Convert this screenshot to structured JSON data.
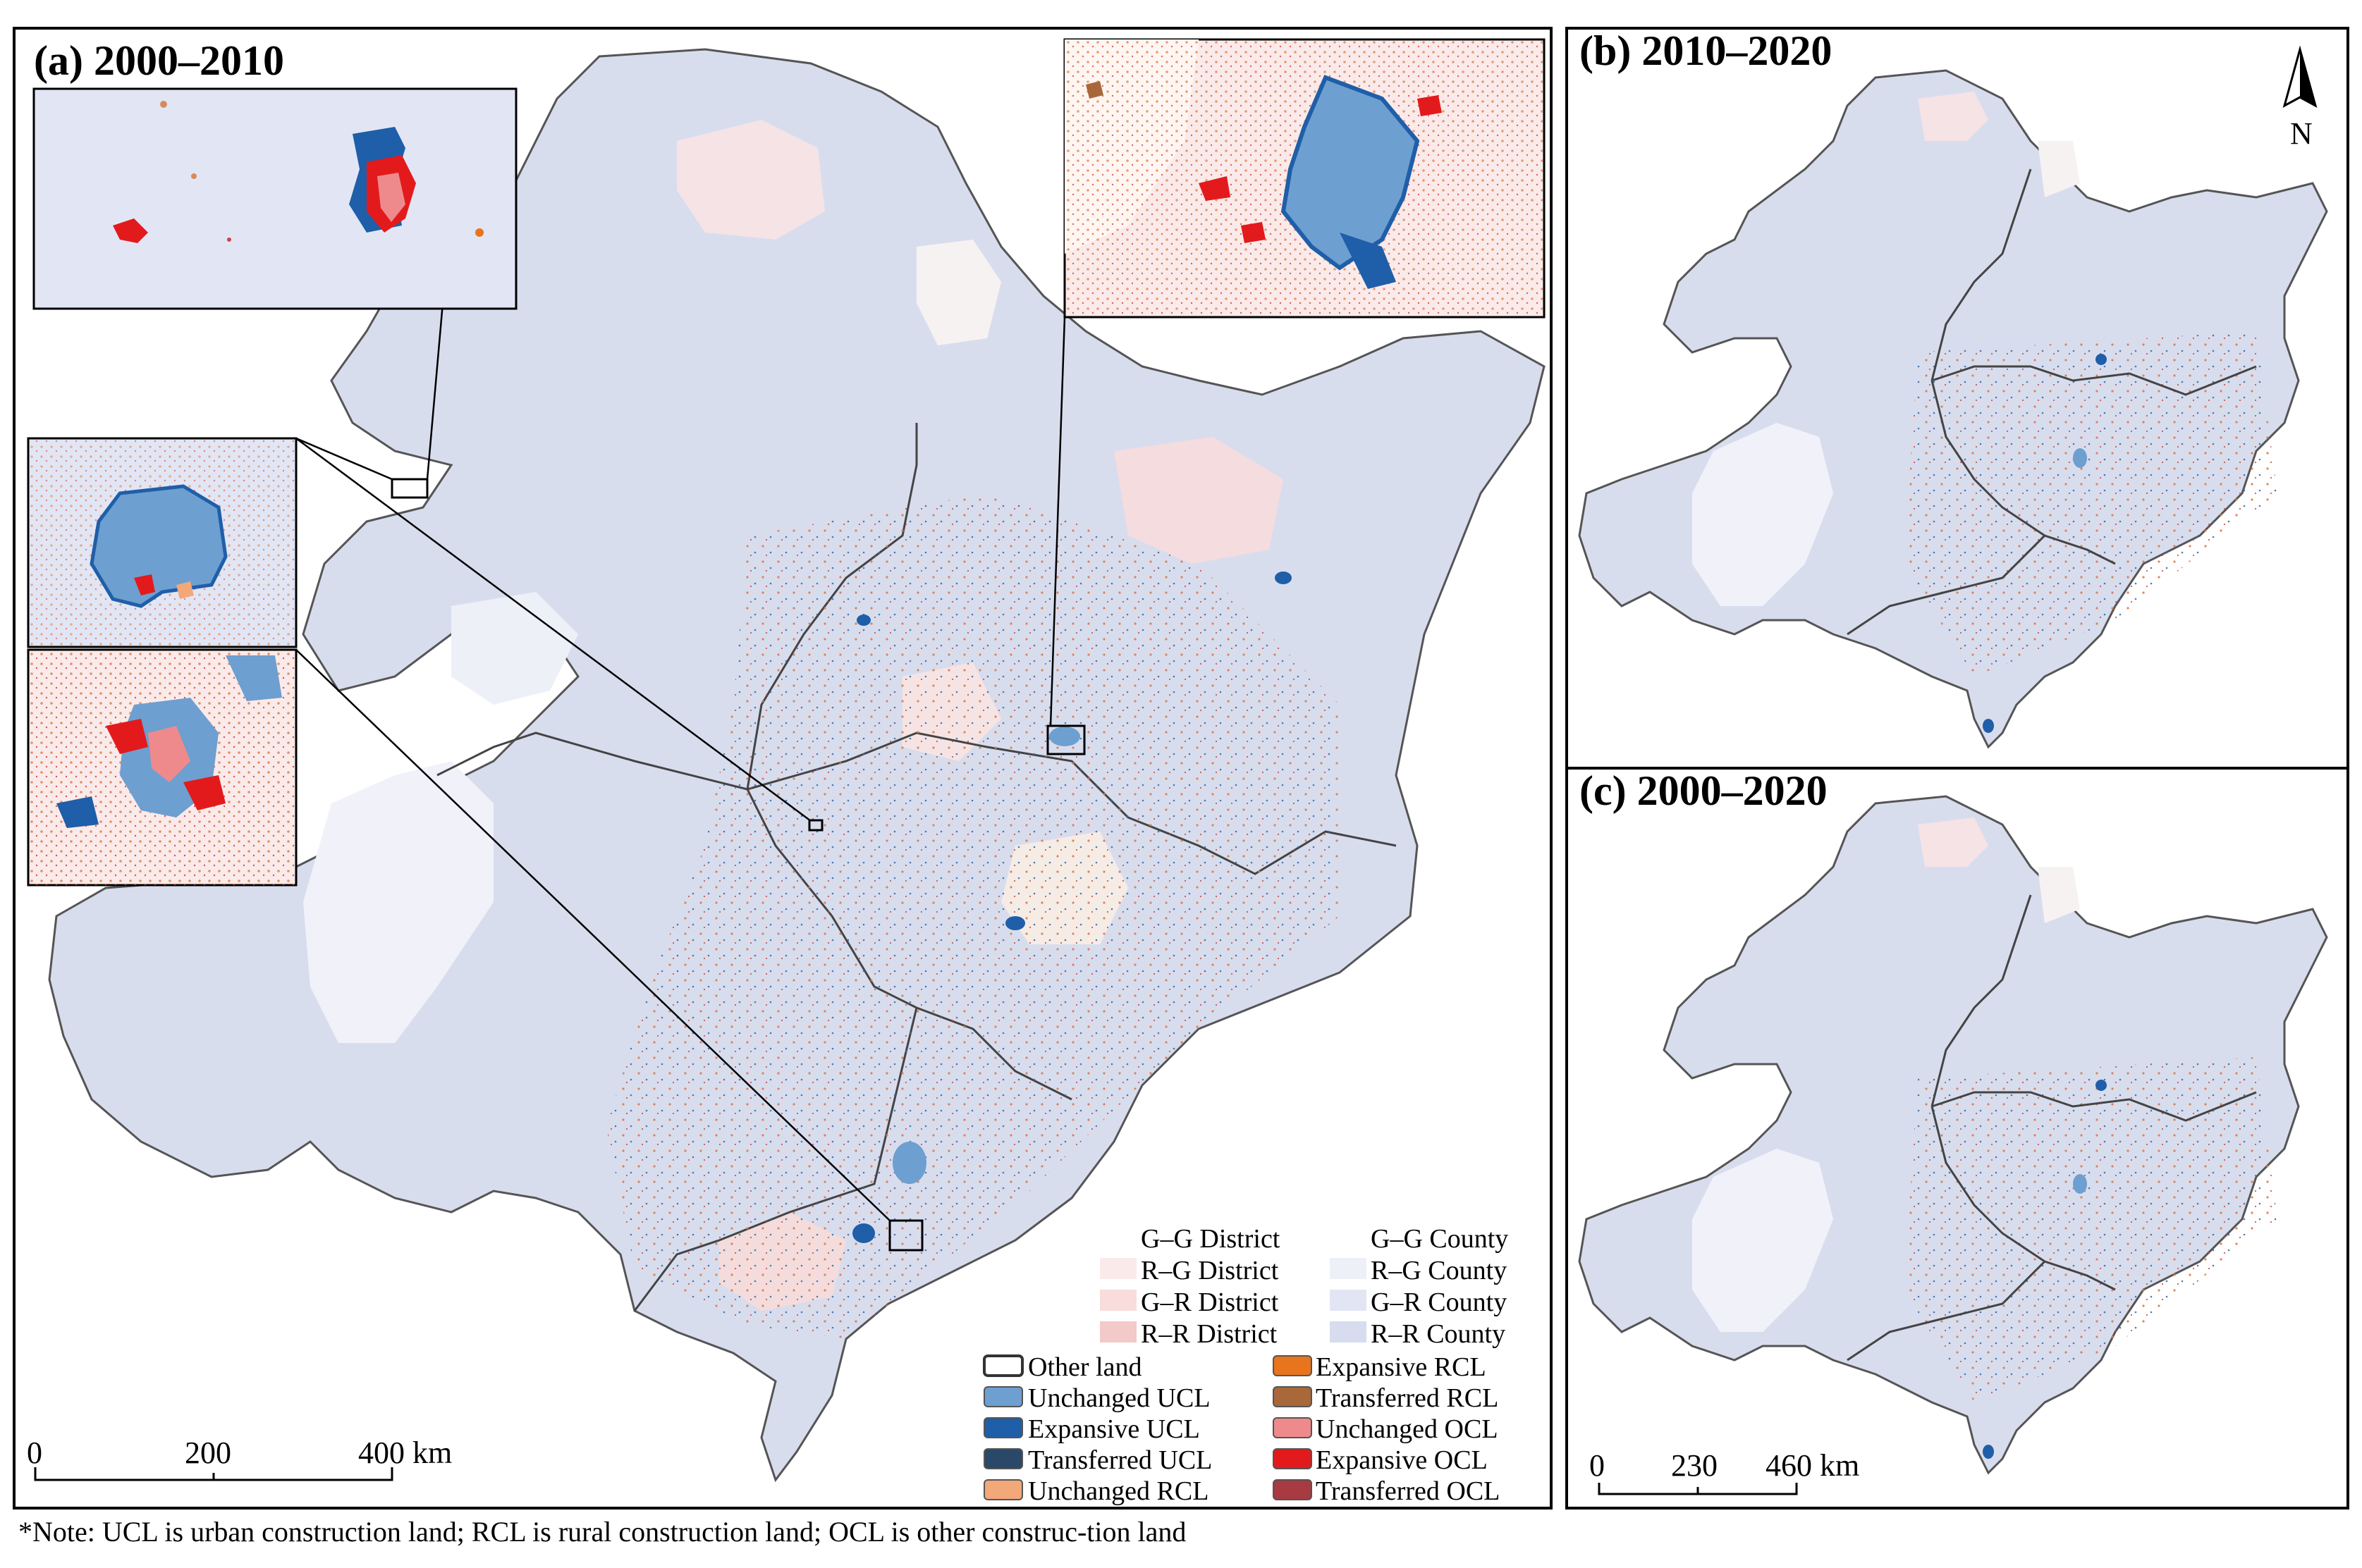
{
  "panels": {
    "a": {
      "title": "(a) 2000–2010"
    },
    "b": {
      "title": "(b) 2010–2020"
    },
    "c": {
      "title": "(c) 2000–2020"
    }
  },
  "north_arrow": {
    "label": "N"
  },
  "scalebar_a": {
    "ticks": [
      "0",
      "200",
      "400 km"
    ]
  },
  "scalebar_bc": {
    "ticks": [
      "0",
      "230",
      "460 km"
    ]
  },
  "legend_regions": [
    {
      "label": "G–G District",
      "color": "#ffffff"
    },
    {
      "label": "G–G County",
      "color": "#ffffff"
    },
    {
      "label": "R–G District",
      "color": "#fbeaea"
    },
    {
      "label": "R–G County",
      "color": "#eef0f8"
    },
    {
      "label": "G–R District",
      "color": "#f9dcdc"
    },
    {
      "label": "G–R County",
      "color": "#e2e6f4"
    },
    {
      "label": "R–R District",
      "color": "#f4c9c9"
    },
    {
      "label": "R–R County",
      "color": "#d7dcee"
    }
  ],
  "legend_landuse": [
    {
      "label": "Other land",
      "color": "#ffffff"
    },
    {
      "label": "Expansive RCL",
      "color": "#e8741e"
    },
    {
      "label": "Unchanged UCL",
      "color": "#6d9fd1"
    },
    {
      "label": "Transferred RCL",
      "color": "#a8683a"
    },
    {
      "label": "Expansive UCL",
      "color": "#1f5ea8"
    },
    {
      "label": "Unchanged OCL",
      "color": "#ee8a8c"
    },
    {
      "label": "Transferred UCL",
      "color": "#2a4868"
    },
    {
      "label": "Expansive OCL",
      "color": "#e31a1c"
    },
    {
      "label": "Unchanged RCL",
      "color": "#f2a878"
    },
    {
      "label": "Transferred OCL",
      "color": "#a83a42"
    }
  ],
  "note": "*Note: UCL is urban construction land; RCL is rural construction land; OCL is other construc-tion land"
}
